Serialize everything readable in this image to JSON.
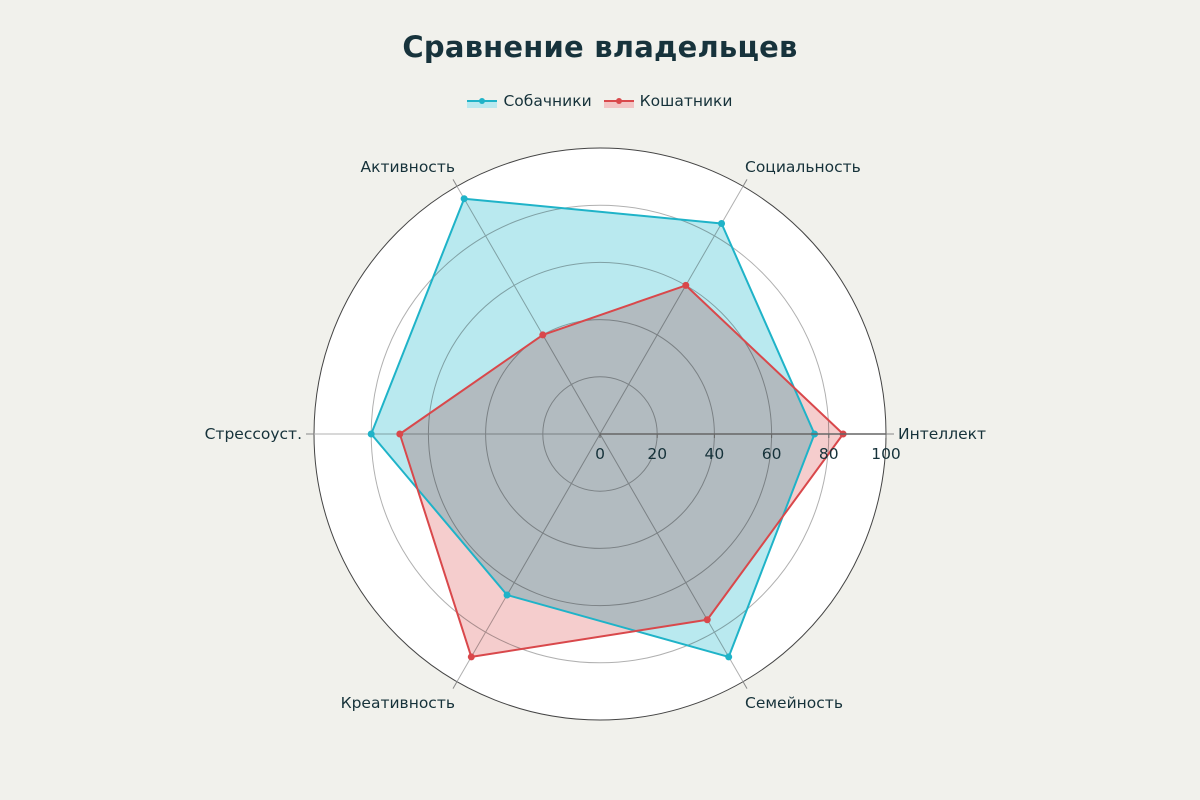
{
  "title": "Сравнение владельцев",
  "legend": [
    {
      "label": "Собачники",
      "color": "#1fb3c8",
      "fill": "#b9e9ef"
    },
    {
      "label": "Кошатники",
      "color": "#d9484b",
      "fill": "#f3c4c4"
    }
  ],
  "chart_data": {
    "type": "radar",
    "title": "Сравнение владельцев",
    "categories": [
      "Интеллект",
      "Социальность",
      "Активность",
      "Стрессоуст.",
      "Креативность",
      "Семейность"
    ],
    "series": [
      {
        "name": "Собачники",
        "values": [
          75,
          85,
          95,
          80,
          65,
          90
        ]
      },
      {
        "name": "Кошатники",
        "values": [
          85,
          60,
          40,
          70,
          90,
          75
        ]
      }
    ],
    "radial_range": [
      0,
      100
    ],
    "radial_ticks": [
      0,
      20,
      40,
      60,
      80,
      100
    ],
    "legend_position": "top",
    "grid": true
  }
}
